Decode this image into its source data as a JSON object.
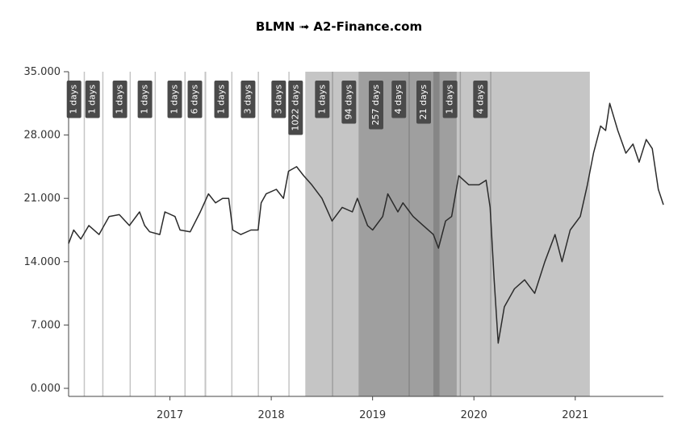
{
  "chart_data": {
    "type": "line",
    "title": "BLMN ➟ A2-Finance.com",
    "color": "#2b2b2b",
    "band_color": "rgba(90,90,90,0.35)",
    "label_color": "#4a4a4a",
    "x": [
      2016.0,
      2016.05,
      2016.12,
      2016.2,
      2016.3,
      2016.4,
      2016.5,
      2016.6,
      2016.7,
      2016.75,
      2016.8,
      2016.9,
      2016.95,
      2017.05,
      2017.1,
      2017.2,
      2017.3,
      2017.38,
      2017.45,
      2017.52,
      2017.58,
      2017.62,
      2017.7,
      2017.8,
      2017.87,
      2017.9,
      2017.95,
      2018.05,
      2018.12,
      2018.17,
      2018.25,
      2018.32,
      2018.4,
      2018.5,
      2018.6,
      2018.7,
      2018.8,
      2018.85,
      2018.95,
      2019.0,
      2019.1,
      2019.15,
      2019.25,
      2019.3,
      2019.4,
      2019.5,
      2019.6,
      2019.65,
      2019.72,
      2019.78,
      2019.85,
      2019.95,
      2020.05,
      2020.12,
      2020.16,
      2020.2,
      2020.24,
      2020.3,
      2020.4,
      2020.5,
      2020.6,
      2020.7,
      2020.8,
      2020.87,
      2020.95,
      2021.05,
      2021.12,
      2021.18,
      2021.25,
      2021.3,
      2021.34,
      2021.42,
      2021.5,
      2021.57,
      2021.63,
      2021.7,
      2021.76,
      2021.82,
      2021.87
    ],
    "values": [
      16,
      17.5,
      16.5,
      18,
      17,
      19,
      19.2,
      18,
      19.5,
      18,
      17.3,
      17,
      19.5,
      19,
      17.5,
      17.3,
      19.5,
      21.5,
      20.5,
      21,
      21,
      17.5,
      17,
      17.5,
      17.5,
      20.5,
      21.5,
      22,
      21,
      24,
      24.5,
      23.5,
      22.5,
      21,
      18.5,
      20,
      19.5,
      21,
      18,
      17.5,
      19,
      21.5,
      19.5,
      20.5,
      19,
      18,
      17,
      15.5,
      18.5,
      19,
      23.5,
      22.5,
      22.5,
      23,
      20,
      12,
      5,
      9,
      11,
      12,
      10.5,
      14,
      17,
      14,
      17.5,
      19,
      22.5,
      26,
      29,
      28.5,
      31.5,
      28.5,
      26,
      27,
      25,
      27.5,
      26.5,
      22,
      20.3
    ],
    "xlim": [
      2016.0,
      2021.87
    ],
    "xticks": [
      2017,
      2018,
      2019,
      2020,
      2021
    ],
    "ylim": [
      0,
      35
    ],
    "yticks": [
      {
        "value": 0,
        "label": "0.000"
      },
      {
        "value": 7,
        "label": "7.000"
      },
      {
        "value": 14,
        "label": "14.000"
      },
      {
        "value": 21,
        "label": "21.000"
      },
      {
        "value": 28,
        "label": "28.000"
      },
      {
        "value": 35,
        "label": "35.000"
      }
    ],
    "drawdowns": [
      {
        "start": 2016.149,
        "end": 2016.152,
        "label": "1 days"
      },
      {
        "start": 2016.332,
        "end": 2016.335,
        "label": "1 days"
      },
      {
        "start": 2016.602,
        "end": 2016.605,
        "label": "1 days"
      },
      {
        "start": 2016.849,
        "end": 2016.852,
        "label": "1 days"
      },
      {
        "start": 2017.143,
        "end": 2017.146,
        "label": "1 days"
      },
      {
        "start": 2017.342,
        "end": 2017.358,
        "label": "6 days"
      },
      {
        "start": 2017.605,
        "end": 2017.608,
        "label": "1 days"
      },
      {
        "start": 2017.867,
        "end": 2017.875,
        "label": "3 days"
      },
      {
        "start": 2018.169,
        "end": 2018.177,
        "label": "3 days"
      },
      {
        "start": 2018.336,
        "end": 2021.144,
        "label": "1022 days"
      },
      {
        "start": 2018.599,
        "end": 2018.602,
        "label": "1 days"
      },
      {
        "start": 2018.862,
        "end": 2019.13,
        "label": "94 days"
      },
      {
        "start": 2019.13,
        "end": 2019.83,
        "label": "257 days"
      },
      {
        "start": 2019.355,
        "end": 2019.366,
        "label": "4 days"
      },
      {
        "start": 2019.6,
        "end": 2019.66,
        "label": "21 days"
      },
      {
        "start": 2019.86,
        "end": 2019.863,
        "label": "1 days"
      },
      {
        "start": 2020.16,
        "end": 2020.171,
        "label": "4 days"
      }
    ]
  }
}
